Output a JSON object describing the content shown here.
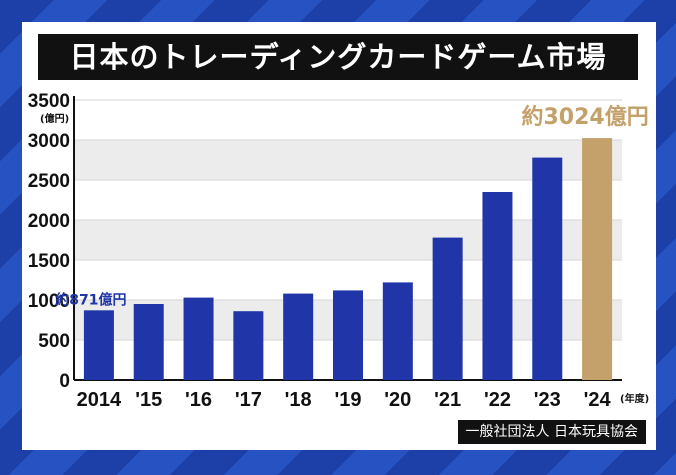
{
  "chart_data": {
    "type": "bar",
    "title": "日本のトレーディングカードゲーム市場",
    "categories": [
      "2014",
      "'15",
      "'16",
      "'17",
      "'18",
      "'19",
      "'20",
      "'21",
      "'22",
      "'23",
      "'24"
    ],
    "values": [
      871,
      950,
      1030,
      860,
      1080,
      1120,
      1220,
      1780,
      2350,
      2780,
      3024
    ],
    "ylim": [
      0,
      3500
    ],
    "yticks": [
      0,
      500,
      1000,
      1500,
      2000,
      2500,
      3000,
      3500
    ],
    "ylabel": "(億円)",
    "xlabel": "(年度)",
    "annotations": [
      {
        "index": 0,
        "text": "約871億円"
      },
      {
        "index": 10,
        "text": "約3024億円"
      }
    ],
    "bar_color": "#1f35a8",
    "highlight_color": "#c4a06a",
    "highlight_index": 10,
    "grid": true
  },
  "source": "一般社団法人 日本玩具協会"
}
